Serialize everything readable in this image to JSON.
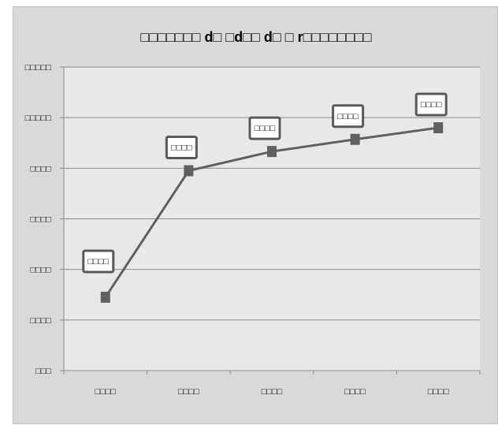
{
  "chart_data": {
    "type": "line",
    "title": "□□□□□□□ d□ □d□□ d□ □ r□□□□□□□□",
    "xlabel": "",
    "ylabel": "",
    "categories": [
      "□□□□",
      "□□□□",
      "□□□□",
      "□□□□",
      "□□□□"
    ],
    "ylim": [
      0,
      6
    ],
    "yticks": [
      0,
      1,
      2,
      3,
      4,
      5,
      6
    ],
    "ytick_labels": [
      "□□□",
      "□□□□",
      "□□□□",
      "□□□□",
      "□□□□",
      "□□□□□",
      "□□□□□"
    ],
    "series": [
      {
        "values": [
          1.45,
          3.95,
          4.33,
          4.57,
          4.8
        ]
      }
    ],
    "data_labels": [
      "□□□□",
      "□□□□",
      "□□□□",
      "□□□□",
      "□□□□"
    ],
    "grid": true,
    "legend": "none",
    "colors": {
      "plot_bg": "#e8e8e8",
      "chart_bg": "#d9d9d9",
      "gridline": "#8c8c8c",
      "line": "#606060",
      "marker": "#606060",
      "label_border": "#595959"
    }
  }
}
